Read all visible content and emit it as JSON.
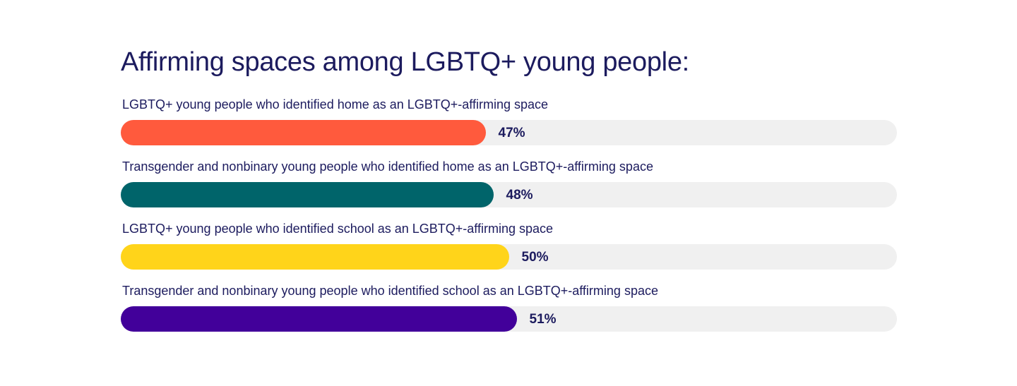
{
  "chart_data": {
    "type": "bar",
    "orientation": "horizontal",
    "title": "Affirming spaces among LGBTQ+ young people:",
    "value_unit": "%",
    "xlim": [
      0,
      100
    ],
    "grid": false,
    "legend": "none",
    "bars": [
      {
        "label": "LGBTQ+ young people who identified home as an LGBTQ+-affirming space",
        "value": 47,
        "value_label": "47%",
        "color": "#ff5a3d"
      },
      {
        "label": "Transgender and nonbinary young people who identified home as an LGBTQ+-affirming space",
        "value": 48,
        "value_label": "48%",
        "color": "#00646a"
      },
      {
        "label": "LGBTQ+ young people who identified school as an LGBTQ+-affirming space",
        "value": 50,
        "value_label": "50%",
        "color": "#ffd41a"
      },
      {
        "label": "Transgender and nonbinary young people who identified school as an LGBTQ+-affirming space",
        "value": 51,
        "value_label": "51%",
        "color": "#42009a"
      }
    ]
  }
}
